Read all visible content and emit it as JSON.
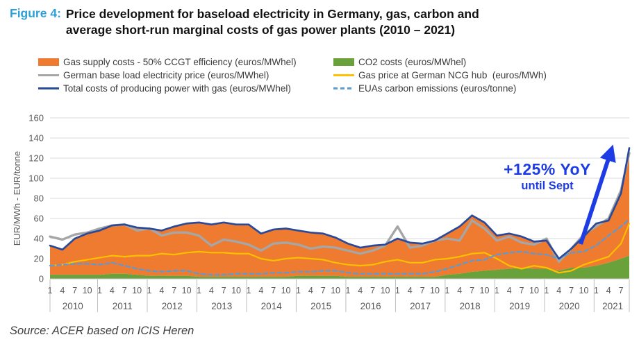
{
  "figure": {
    "label": "Figure 4:",
    "title_line1": "Price development for baseload electricity in Germany, gas, carbon and",
    "title_line2": "average short-run marginal costs of gas power plants (2010 – 2021)"
  },
  "legend": {
    "left": [
      {
        "label": "Gas supply costs - 50% CCGT efficiency (euros/MWhel)",
        "swatch": "area",
        "color": "#EE7B30"
      },
      {
        "label": "German base load electricity price (euros/MWhel)",
        "swatch": "line",
        "color": "#A6A6A6"
      },
      {
        "label": "Total costs of producing power with gas (euros/MWhel)",
        "swatch": "line",
        "color": "#2A4A99"
      }
    ],
    "right": [
      {
        "label": "CO2 costs (euros/MWhel)",
        "swatch": "area",
        "color": "#69A23B"
      },
      {
        "label": "Gas price at German NCG hub  (euros/MWh)",
        "swatch": "line",
        "color": "#FFC000"
      },
      {
        "label": "EUAs carbon emissions (euros/tonne)",
        "swatch": "dashed",
        "color": "#5B9BD5"
      }
    ]
  },
  "annotation": {
    "line1": "+125% YoY",
    "line2": "until Sept",
    "color": "#1E3CE3"
  },
  "source": "Source: ACER based on ICIS Heren",
  "chart_data": {
    "type": "combo: stacked area (CO2 + gas supply costs) with overlaid lines",
    "ylabel": "EUR/MWh - EUR/tonne",
    "ylim": [
      0,
      160
    ],
    "yticks": [
      0,
      20,
      40,
      60,
      80,
      100,
      120,
      140,
      160
    ],
    "grid": "horizontal only, light gray",
    "legend_position": "top, two columns",
    "x_axis": "monthly, Jan 2010 (index 0) to Sep 2021 (index 140); values sampled quarterly",
    "x_months": [
      0,
      3,
      6,
      9,
      12,
      15,
      18,
      21,
      24,
      27,
      30,
      33,
      36,
      39,
      42,
      45,
      48,
      51,
      54,
      57,
      60,
      63,
      66,
      69,
      72,
      75,
      78,
      81,
      84,
      87,
      90,
      93,
      96,
      99,
      102,
      105,
      108,
      111,
      114,
      117,
      120,
      123,
      126,
      129,
      132,
      135,
      138,
      140
    ],
    "years": [
      {
        "label": "2010",
        "start": 0,
        "months": [
          1,
          4,
          7,
          10
        ]
      },
      {
        "label": "2011",
        "start": 12,
        "months": [
          1,
          4,
          7,
          10
        ]
      },
      {
        "label": "2012",
        "start": 24,
        "months": [
          1,
          4,
          7,
          10
        ]
      },
      {
        "label": "2013",
        "start": 36,
        "months": [
          1,
          4,
          7,
          10
        ]
      },
      {
        "label": "2014",
        "start": 48,
        "months": [
          1,
          4,
          7,
          10
        ]
      },
      {
        "label": "2015",
        "start": 60,
        "months": [
          1,
          4,
          7,
          10
        ]
      },
      {
        "label": "2016",
        "start": 72,
        "months": [
          1,
          4,
          7,
          10
        ]
      },
      {
        "label": "2017",
        "start": 84,
        "months": [
          1,
          4,
          7,
          10
        ]
      },
      {
        "label": "2018",
        "start": 96,
        "months": [
          1,
          4,
          7,
          10
        ]
      },
      {
        "label": "2019",
        "start": 108,
        "months": [
          1,
          4,
          7,
          10
        ]
      },
      {
        "label": "2020",
        "start": 120,
        "months": [
          1,
          4,
          7,
          10
        ]
      },
      {
        "label": "2021",
        "start": 132,
        "months": [
          1,
          4,
          7
        ]
      }
    ],
    "series": [
      {
        "key": "co2_costs",
        "label": "CO2 costs (euros/MWhel)",
        "type": "area-base",
        "color": "#69A23B",
        "values": [
          4,
          4,
          4,
          4,
          4,
          5,
          5,
          4,
          3,
          3,
          3,
          3,
          2,
          2,
          2,
          2,
          2,
          2,
          2,
          2,
          3,
          3,
          3,
          3,
          2,
          2,
          2,
          2,
          2,
          2,
          2,
          2,
          4,
          5,
          7,
          8,
          9,
          10,
          11,
          10,
          10,
          8,
          11,
          11,
          13,
          16,
          20,
          23
        ]
      },
      {
        "key": "gas_supply",
        "label": "Gas supply costs - 50% CCGT efficiency (euros/MWhel)",
        "type": "area-stacked-on-co2",
        "color": "#EE7B30",
        "values": [
          29,
          25,
          36,
          41,
          44,
          48,
          49,
          47,
          47,
          45,
          49,
          52,
          54,
          52,
          54,
          52,
          52,
          43,
          47,
          48,
          45,
          43,
          42,
          38,
          33,
          29,
          31,
          32,
          38,
          34,
          33,
          36,
          41,
          47,
          56,
          48,
          34,
          35,
          31,
          27,
          28,
          12,
          19,
          31,
          42,
          42,
          65,
          107
        ]
      },
      {
        "key": "total_costs",
        "label": "Total costs of producing power with gas (euros/MWhel)",
        "type": "line",
        "color": "#2A4A99",
        "values": [
          33,
          29,
          40,
          45,
          48,
          53,
          54,
          51,
          50,
          48,
          52,
          55,
          56,
          54,
          56,
          54,
          54,
          45,
          49,
          50,
          48,
          46,
          45,
          41,
          35,
          31,
          33,
          34,
          40,
          36,
          35,
          38,
          45,
          52,
          63,
          56,
          43,
          45,
          42,
          37,
          38,
          20,
          30,
          42,
          55,
          58,
          85,
          130
        ]
      },
      {
        "key": "electricity_price",
        "label": "German base load electricity price (euros/MWhel)",
        "type": "line",
        "color": "#A6A6A6",
        "values": [
          42,
          39,
          44,
          46,
          50,
          53,
          54,
          48,
          50,
          43,
          46,
          46,
          43,
          33,
          39,
          37,
          34,
          28,
          35,
          36,
          34,
          30,
          32,
          31,
          28,
          25,
          28,
          33,
          52,
          31,
          33,
          38,
          40,
          38,
          58,
          50,
          38,
          42,
          36,
          34,
          40,
          17,
          30,
          44,
          52,
          60,
          88,
          125
        ]
      },
      {
        "key": "gas_price",
        "label": "Gas price at German NCG hub  (euros/MWh)",
        "type": "line",
        "color": "#FFC000",
        "values": [
          13,
          14,
          17,
          19,
          21,
          23,
          22,
          23,
          23,
          25,
          24,
          26,
          27,
          26,
          26,
          25,
          25,
          20,
          18,
          20,
          21,
          20,
          19,
          16,
          14,
          13,
          14,
          17,
          19,
          16,
          16,
          19,
          20,
          22,
          25,
          26,
          20,
          13,
          10,
          13,
          11,
          6,
          8,
          14,
          18,
          22,
          35,
          55
        ]
      },
      {
        "key": "eua_price",
        "label": "EUAs carbon emissions (euros/tonne)",
        "type": "line-dashed",
        "color": "#5B9BD5",
        "values": [
          13,
          14,
          15,
          15,
          14,
          16,
          13,
          10,
          8,
          7,
          8,
          8,
          5,
          4,
          4,
          5,
          5,
          5,
          6,
          6,
          7,
          7,
          8,
          8,
          6,
          5,
          5,
          5,
          5,
          5,
          5,
          7,
          10,
          14,
          18,
          19,
          24,
          26,
          27,
          25,
          24,
          20,
          26,
          27,
          33,
          43,
          52,
          59
        ]
      }
    ]
  }
}
